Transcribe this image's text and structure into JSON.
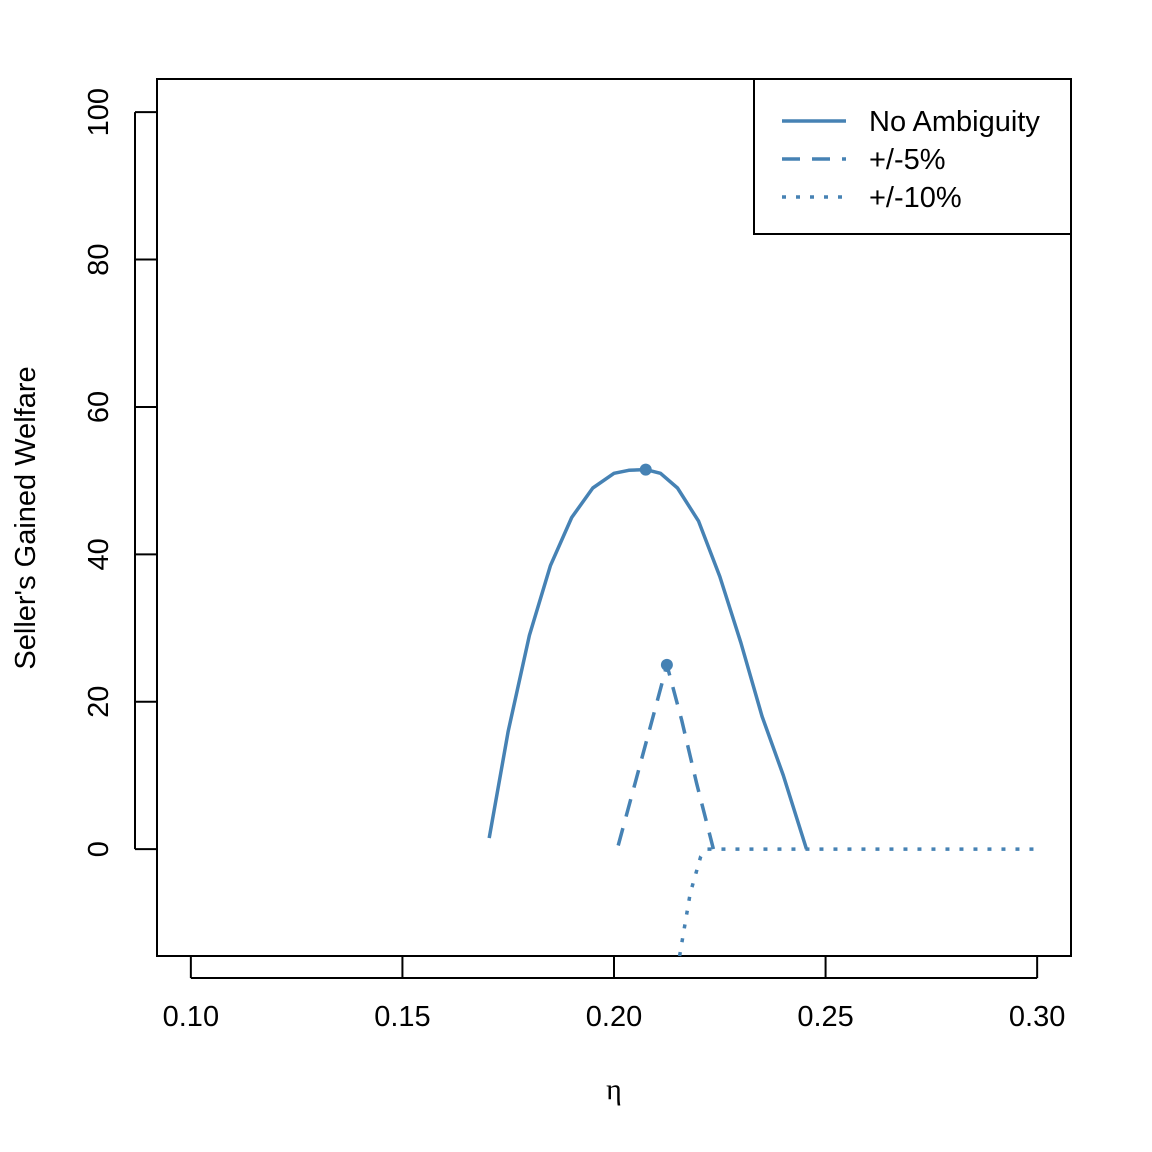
{
  "colors": {
    "series": "#4682B4",
    "axis": "#000000",
    "background": "#ffffff"
  },
  "chart_data": {
    "type": "line",
    "title": "",
    "xlabel": "η",
    "ylabel": "Seller's Gained Welfare",
    "xlim": [
      0.092,
      0.308
    ],
    "ylim": [
      -14.5,
      104.5
    ],
    "xticks": [
      "0.10",
      "0.15",
      "0.20",
      "0.25",
      "0.30"
    ],
    "yticks": [
      "0",
      "20",
      "40",
      "60",
      "80",
      "100"
    ],
    "grid": false,
    "legend_position": "top-right",
    "series": [
      {
        "name": "No Ambiguity",
        "style": "solid",
        "x": [
          0.1705,
          0.175,
          0.18,
          0.185,
          0.19,
          0.195,
          0.2,
          0.2035,
          0.2075,
          0.211,
          0.215,
          0.22,
          0.225,
          0.23,
          0.235,
          0.24,
          0.2455
        ],
        "y": [
          1.5,
          16.0,
          29.0,
          38.5,
          45.0,
          49.0,
          51.0,
          51.4,
          51.5,
          51.0,
          49.0,
          44.5,
          37.0,
          28.0,
          18.0,
          10.0,
          0.0
        ]
      },
      {
        "name": "+/-5%",
        "style": "dashed",
        "x": [
          0.201,
          0.205,
          0.209,
          0.2125,
          0.216,
          0.2195,
          0.2235
        ],
        "y": [
          0.5,
          9.0,
          17.5,
          25.0,
          17.5,
          9.0,
          0.0
        ]
      },
      {
        "name": "+/-10%",
        "style": "dotted",
        "x": [
          0.2155,
          0.218,
          0.2205,
          0.222,
          0.23,
          0.24,
          0.25,
          0.26,
          0.27,
          0.28,
          0.29,
          0.2995
        ],
        "y": [
          -14.5,
          -6.0,
          -1.0,
          0.0,
          0.0,
          0.0,
          0.0,
          0.0,
          0.0,
          0.0,
          0.0,
          0.0
        ]
      }
    ],
    "highlight_points": [
      {
        "series": "No Ambiguity",
        "x": 0.2075,
        "y": 51.5
      },
      {
        "series": "+/-5%",
        "x": 0.2125,
        "y": 25.0
      }
    ]
  }
}
